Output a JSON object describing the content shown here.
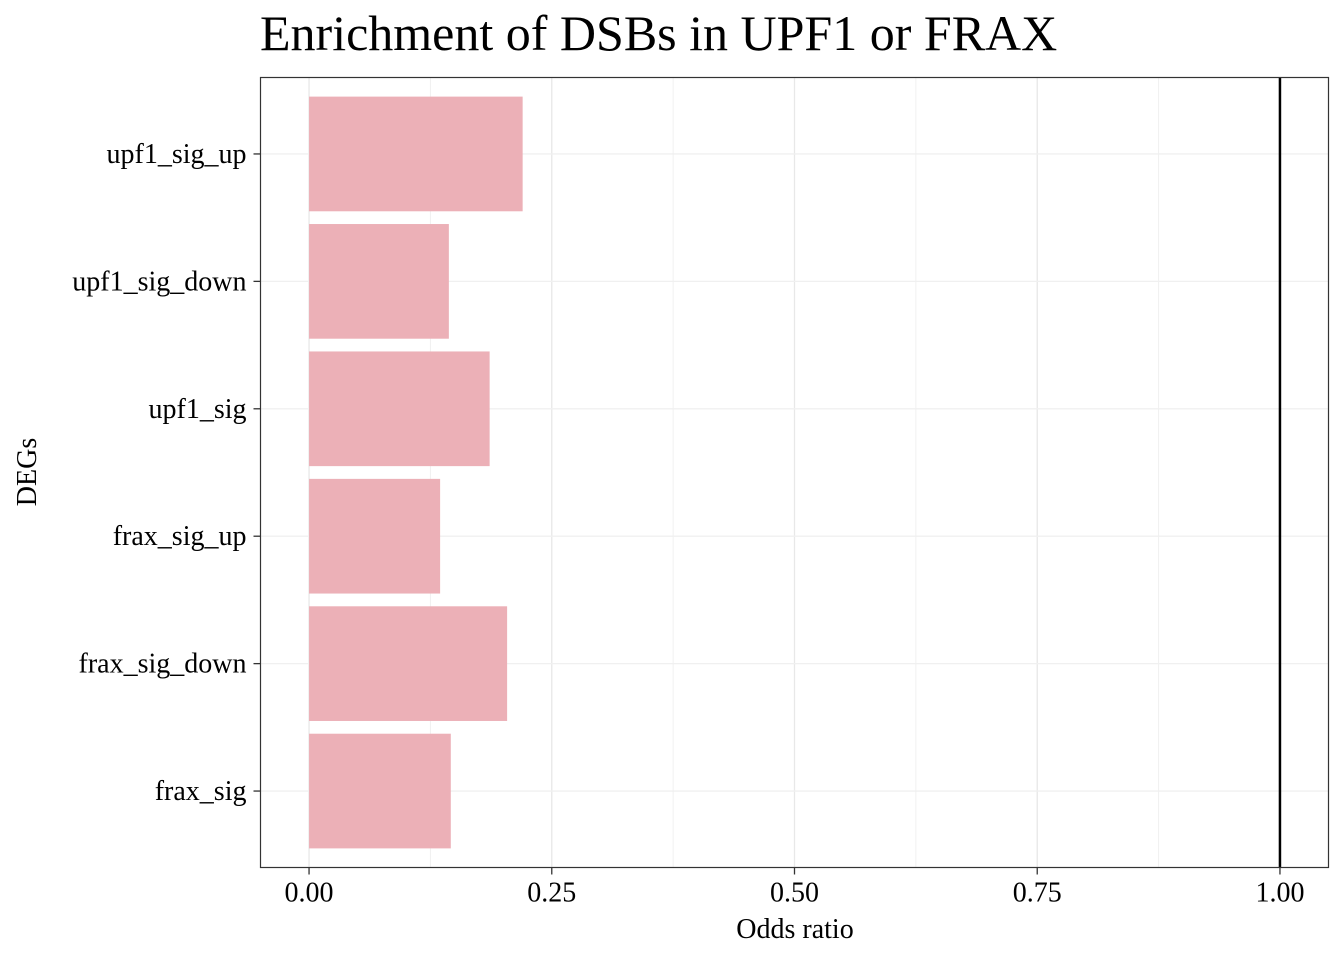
{
  "chart_data": {
    "type": "bar",
    "orientation": "horizontal",
    "title": "Enrichment of DSBs in UPF1 or FRAX",
    "xlabel": "Odds ratio",
    "ylabel": "DEGs",
    "categories": [
      "upf1_sig_up",
      "upf1_sig_down",
      "upf1_sig",
      "frax_sig_up",
      "frax_sig_down",
      "frax_sig"
    ],
    "values": [
      0.22,
      0.144,
      0.186,
      0.135,
      0.204,
      0.146
    ],
    "xlim": [
      -0.05,
      1.05
    ],
    "xticks": [
      0.0,
      0.25,
      0.5,
      0.75,
      1.0
    ],
    "xtick_labels": [
      "0.00",
      "0.25",
      "0.50",
      "0.75",
      "1.00"
    ],
    "reference_line": 1.0,
    "bar_color": "#ecb0b7",
    "grid": true,
    "legend": "none"
  }
}
